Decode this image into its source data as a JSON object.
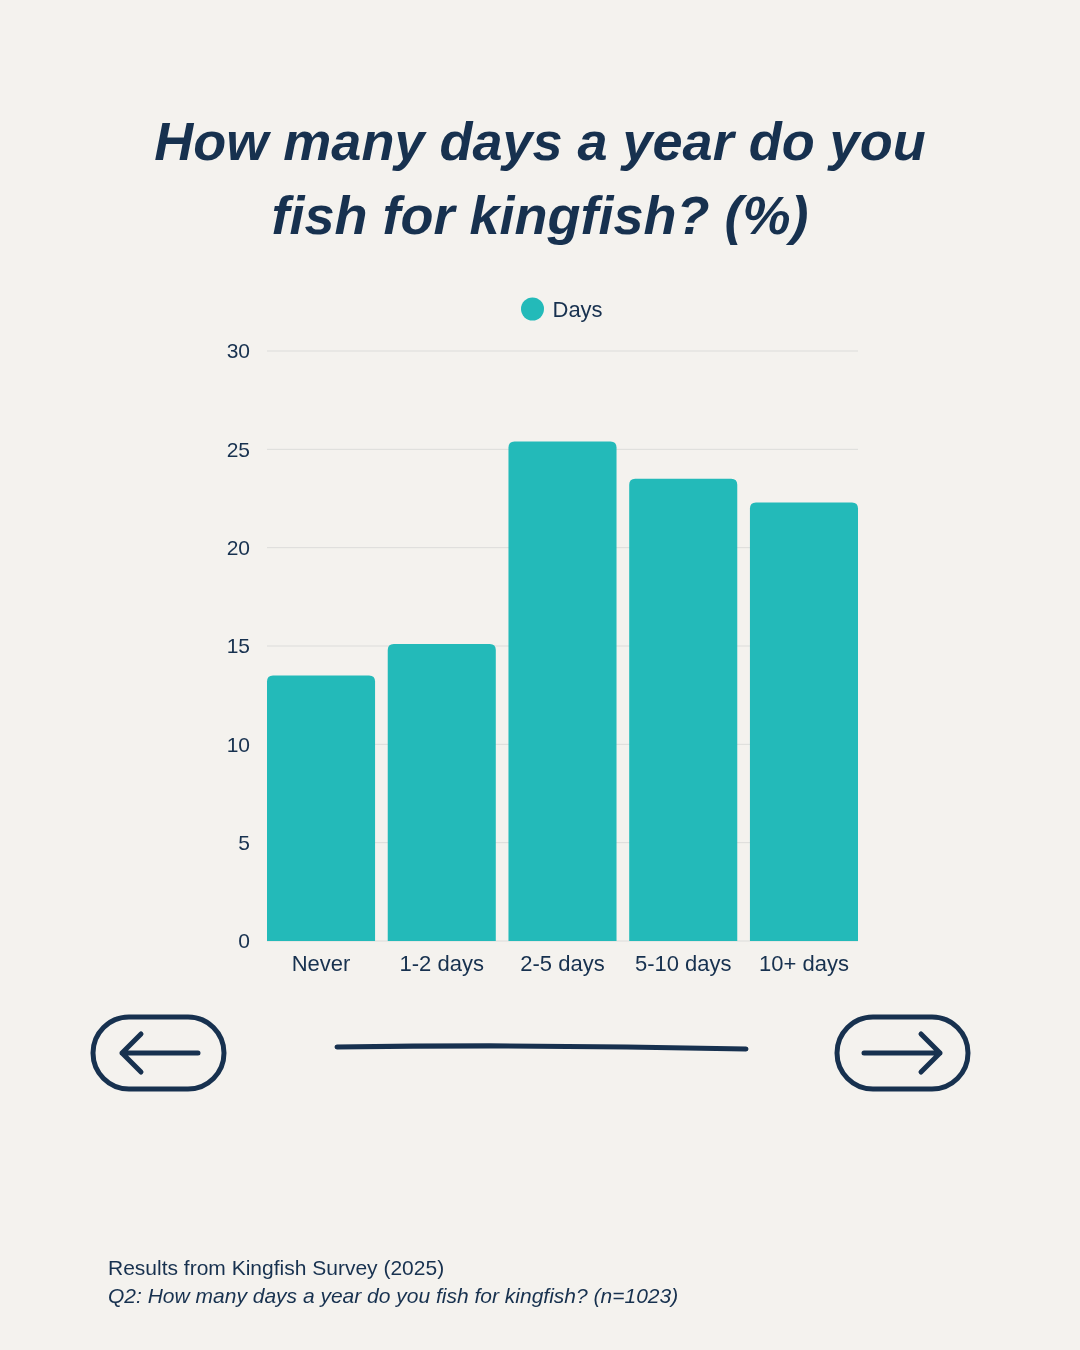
{
  "chart_data": {
    "type": "bar",
    "title": "How many days a year do you fish for kingfish? (%)",
    "categories": [
      "Never",
      "1-2 days",
      "2-5 days",
      "5-10 days",
      "10+ days"
    ],
    "series": [
      {
        "name": "Days",
        "color": "#23bab9",
        "values": [
          13.5,
          15.1,
          25.4,
          23.5,
          22.3
        ]
      }
    ],
    "ylim": [
      0,
      30
    ],
    "yticks": [
      0,
      5,
      10,
      15,
      20,
      25,
      30
    ],
    "grid": "y",
    "legend": "top",
    "annotations": [
      "Results from Kingfish Survey (2025)",
      "Q2: How many days a year do you fish for kingfish? (n=1023)"
    ]
  }
}
